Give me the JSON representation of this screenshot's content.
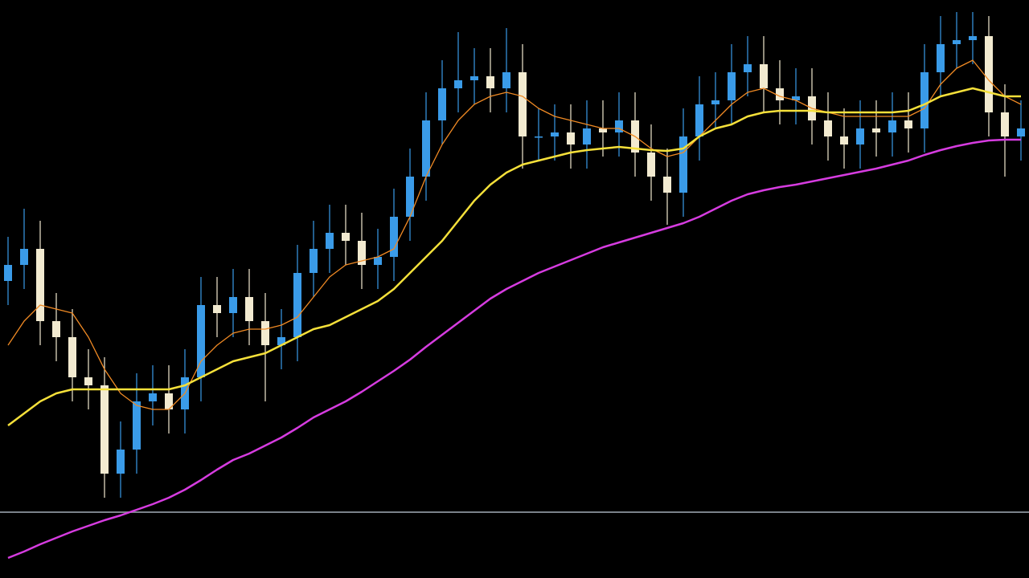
{
  "chart_data": {
    "type": "candlestick",
    "ylim": [
      0,
      720
    ],
    "up_color": "#3a9be8",
    "down_color": "#f2ead0",
    "open": [
      370,
      390,
      410,
      320,
      300,
      250,
      240,
      130,
      160,
      220,
      230,
      210,
      250,
      340,
      330,
      350,
      320,
      290,
      300,
      380,
      410,
      430,
      420,
      390,
      400,
      450,
      500,
      570,
      610,
      620,
      625,
      610,
      630,
      550,
      550,
      555,
      540,
      560,
      555,
      570,
      530,
      500,
      480,
      550,
      590,
      595,
      630,
      640,
      610,
      595,
      600,
      570,
      550,
      540,
      560,
      555,
      570,
      560,
      630,
      665,
      670,
      675,
      580,
      550
    ],
    "high": [
      425,
      460,
      445,
      355,
      335,
      285,
      275,
      195,
      255,
      265,
      265,
      285,
      375,
      375,
      385,
      385,
      355,
      335,
      415,
      445,
      465,
      465,
      455,
      435,
      485,
      535,
      605,
      645,
      680,
      660,
      660,
      685,
      665,
      585,
      590,
      590,
      595,
      595,
      605,
      605,
      565,
      535,
      585,
      625,
      630,
      665,
      675,
      675,
      645,
      635,
      635,
      605,
      585,
      595,
      595,
      605,
      605,
      665,
      700,
      705,
      705,
      700,
      615,
      595
    ],
    "low": [
      340,
      360,
      290,
      270,
      220,
      210,
      100,
      100,
      130,
      190,
      180,
      180,
      220,
      300,
      300,
      290,
      220,
      260,
      270,
      350,
      380,
      390,
      360,
      360,
      370,
      420,
      470,
      540,
      580,
      590,
      580,
      580,
      510,
      520,
      520,
      510,
      510,
      525,
      525,
      500,
      470,
      440,
      450,
      520,
      560,
      565,
      600,
      580,
      565,
      565,
      540,
      520,
      510,
      510,
      525,
      525,
      530,
      530,
      600,
      635,
      640,
      550,
      500,
      520
    ],
    "close": [
      390,
      410,
      320,
      300,
      250,
      240,
      130,
      160,
      220,
      230,
      210,
      250,
      340,
      330,
      350,
      320,
      290,
      300,
      380,
      410,
      430,
      420,
      390,
      400,
      450,
      500,
      570,
      610,
      620,
      625,
      610,
      630,
      550,
      550,
      555,
      540,
      560,
      555,
      570,
      530,
      500,
      480,
      550,
      590,
      595,
      630,
      640,
      610,
      595,
      600,
      570,
      550,
      540,
      560,
      555,
      570,
      560,
      630,
      665,
      670,
      675,
      580,
      550,
      560
    ],
    "series": [
      {
        "color": "#f08a24",
        "width": 1.3,
        "values": [
          290,
          320,
          340,
          335,
          330,
          300,
          260,
          230,
          215,
          210,
          210,
          230,
          270,
          290,
          305,
          310,
          310,
          315,
          325,
          350,
          375,
          390,
          395,
          400,
          410,
          450,
          500,
          540,
          570,
          590,
          600,
          605,
          600,
          585,
          575,
          570,
          565,
          560,
          560,
          550,
          535,
          525,
          530,
          550,
          570,
          590,
          605,
          610,
          600,
          595,
          585,
          580,
          575,
          575,
          575,
          575,
          575,
          585,
          615,
          635,
          645,
          620,
          600,
          590
        ]
      },
      {
        "color": "#f5e03a",
        "width": 2.5,
        "values": [
          190,
          205,
          220,
          230,
          235,
          235,
          235,
          235,
          235,
          235,
          235,
          240,
          250,
          260,
          270,
          275,
          280,
          290,
          300,
          310,
          315,
          325,
          335,
          345,
          360,
          380,
          400,
          420,
          445,
          470,
          490,
          505,
          515,
          520,
          525,
          530,
          533,
          535,
          537,
          535,
          533,
          532,
          535,
          550,
          560,
          565,
          575,
          580,
          582,
          582,
          582,
          580,
          580,
          580,
          580,
          580,
          582,
          590,
          600,
          605,
          610,
          605,
          600,
          600
        ]
      },
      {
        "color": "#d63ce0",
        "width": 2.5,
        "values": [
          25,
          33,
          42,
          50,
          58,
          65,
          72,
          78,
          85,
          92,
          100,
          110,
          122,
          135,
          147,
          155,
          165,
          175,
          187,
          200,
          210,
          220,
          232,
          245,
          258,
          272,
          288,
          303,
          318,
          333,
          348,
          360,
          370,
          380,
          388,
          396,
          404,
          412,
          418,
          424,
          430,
          436,
          442,
          450,
          460,
          470,
          478,
          483,
          487,
          490,
          494,
          498,
          502,
          506,
          510,
          515,
          520,
          527,
          533,
          538,
          542,
          545,
          546,
          546
        ]
      }
    ],
    "hline": 82,
    "hline_color": "#9aa3ad"
  }
}
